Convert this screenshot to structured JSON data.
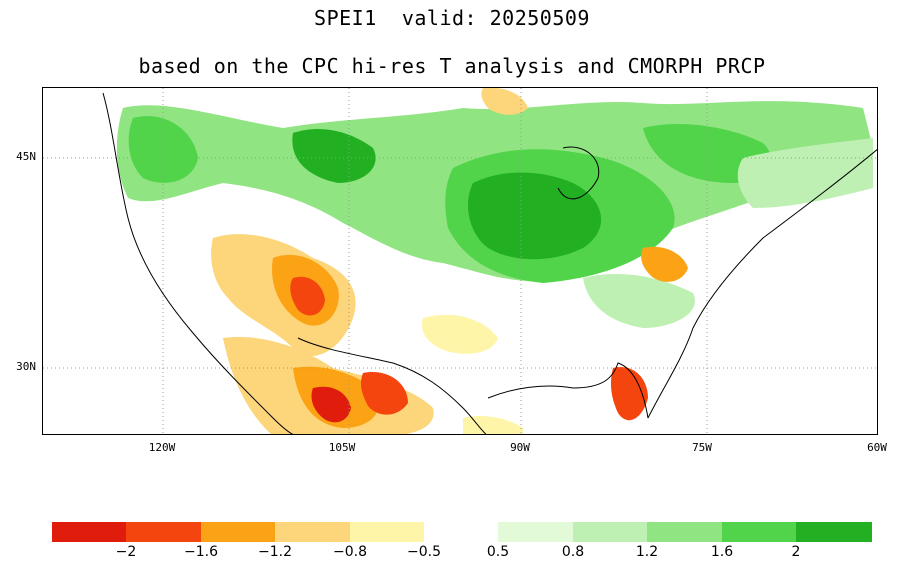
{
  "title": {
    "line1": "SPEI1  valid: 20250509",
    "line2": "based on the CPC hi-res T analysis and CMORPH PRCP"
  },
  "map": {
    "lat_labels": [
      "45N",
      "30N"
    ],
    "lon_labels": [
      "120W",
      "105W",
      "90W",
      "75W",
      "60W"
    ]
  },
  "colorbar": {
    "dry_colors": [
      "#e01c0c",
      "#f5450f",
      "#fba215",
      "#fdd57a",
      "#fef5a8"
    ],
    "wet_colors": [
      "#e3fad9",
      "#bdf0b2",
      "#90e482",
      "#52d44a",
      "#22b022"
    ],
    "labels": [
      "−2",
      "−1.6",
      "−1.2",
      "−0.8",
      "−0.5",
      "0.5",
      "0.8",
      "1.2",
      "1.6",
      "2"
    ]
  }
}
